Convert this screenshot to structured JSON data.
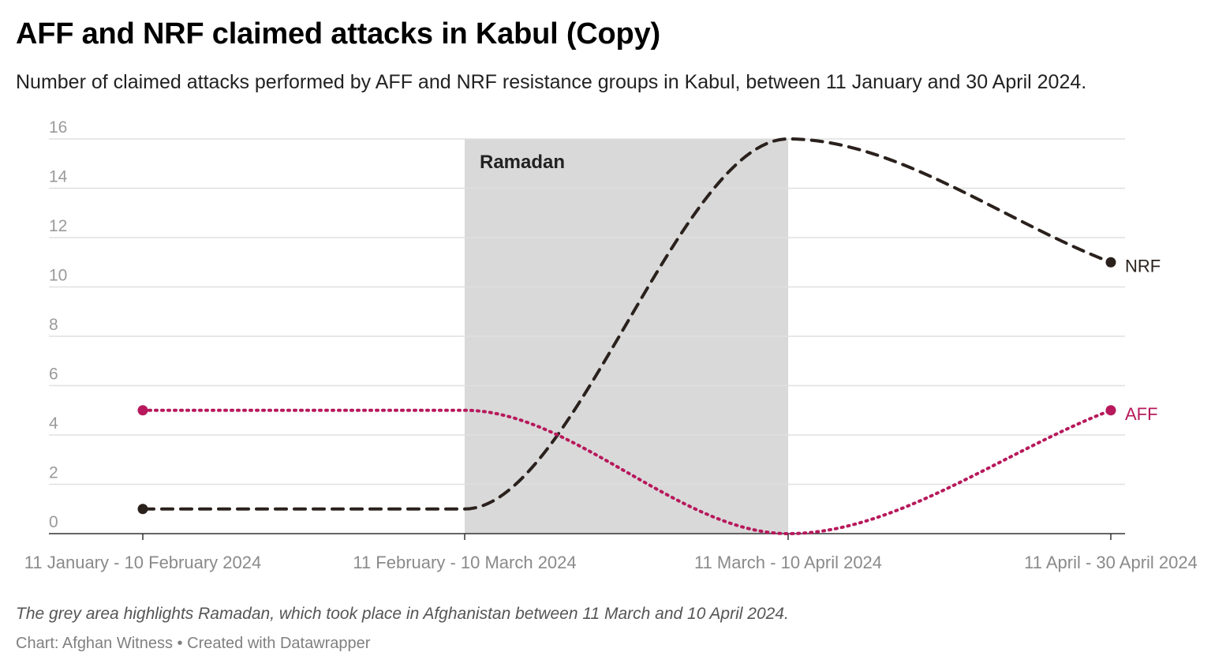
{
  "title": "AFF and NRF claimed attacks in Kabul (Copy)",
  "subtitle": "Number of claimed attacks performed by AFF and NRF resistance groups in Kabul, between 11 January and 30 April 2024.",
  "note": "The grey area highlights Ramadan, which took place in Afghanistan between 11 March and 10 April 2024.",
  "footer": {
    "source": "Chart: Afghan Witness",
    "separator": "•",
    "created_with": "Created with Datawrapper"
  },
  "chart_data": {
    "type": "line",
    "categories": [
      "11 January - 10 February 2024",
      "11 February - 10 March 2024",
      "11 March - 10 April 2024",
      "11 April - 30 April 2024"
    ],
    "ylim": [
      0,
      16
    ],
    "yticks": [
      0,
      2,
      4,
      6,
      8,
      10,
      12,
      14,
      16
    ],
    "grid": true,
    "series": [
      {
        "name": "NRF",
        "values": [
          1,
          1,
          16,
          11
        ],
        "color": "#2a211d",
        "style": "dashed"
      },
      {
        "name": "AFF",
        "values": [
          5,
          5,
          0,
          5
        ],
        "color": "#b7195c",
        "style": "dotted"
      }
    ],
    "annotations": [
      {
        "label": "Ramadan",
        "from_category": "11 February - 10 March 2024",
        "to_category": "11 March - 10 April 2024",
        "color": "#d9d9d9"
      }
    ]
  }
}
